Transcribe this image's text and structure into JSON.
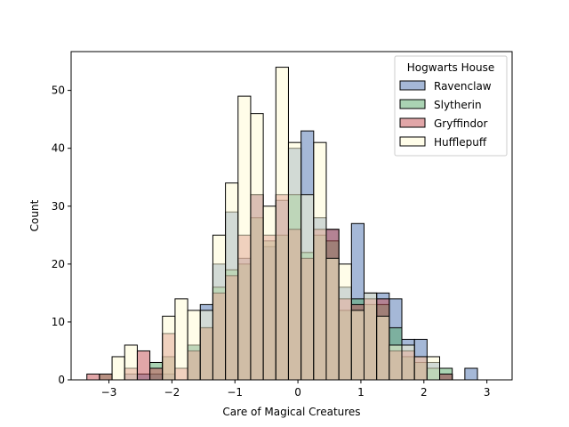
{
  "chart_data": {
    "type": "histogram",
    "title": "",
    "xlabel": "Care of Magical Creatures",
    "ylabel": "Count",
    "xlim": [
      -3.6,
      3.4
    ],
    "ylim": [
      0,
      56.7
    ],
    "x_ticks": [
      -3,
      -2,
      -1,
      0,
      1,
      2,
      3
    ],
    "y_ticks": [
      0,
      10,
      20,
      30,
      40,
      50
    ],
    "bin_start": -3.35,
    "bin_width": 0.2,
    "grid": false,
    "legend": {
      "title": "Hogwarts House",
      "placement": "top-right"
    },
    "series": [
      {
        "name": "Ravenclaw",
        "color": "#4c72b0",
        "values": [
          0,
          0,
          0,
          1,
          1,
          1,
          1,
          0,
          6,
          13,
          20,
          29,
          21,
          32,
          23,
          31,
          40,
          43,
          28,
          26,
          16,
          27,
          15,
          15,
          14,
          7,
          7,
          3,
          1,
          0,
          2
        ]
      },
      {
        "name": "Slytherin",
        "color": "#55a868",
        "values": [
          0,
          1,
          0,
          0,
          0,
          3,
          4,
          0,
          6,
          9,
          16,
          19,
          20,
          28,
          24,
          25,
          32,
          22,
          25,
          24,
          12,
          14,
          13,
          13,
          9,
          4,
          3,
          2,
          2,
          0,
          0
        ]
      },
      {
        "name": "Gryffindor",
        "color": "#c44e52",
        "values": [
          1,
          1,
          0,
          2,
          5,
          2,
          8,
          2,
          5,
          9,
          15,
          18,
          25,
          32,
          25,
          32,
          26,
          21,
          26,
          26,
          14,
          13,
          14,
          14,
          5,
          5,
          4,
          0,
          1,
          0,
          0
        ]
      },
      {
        "name": "Hufflepuff",
        "color": "#fffbd4",
        "values": [
          0,
          0,
          4,
          6,
          0,
          0,
          11,
          14,
          12,
          12,
          25,
          34,
          49,
          46,
          30,
          54,
          41,
          32,
          41,
          21,
          20,
          12,
          15,
          11,
          6,
          6,
          4,
          4,
          0,
          0,
          0
        ]
      }
    ]
  }
}
